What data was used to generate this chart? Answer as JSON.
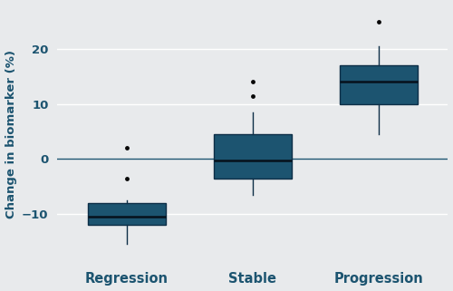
{
  "categories": [
    "Regression",
    "Stable",
    "Progression"
  ],
  "box_data": [
    {
      "med": -10.5,
      "q1": -12.0,
      "q3": -8.0,
      "whislo": -15.5,
      "whishi": -7.5,
      "fliers": [
        -3.5,
        2.0
      ]
    },
    {
      "med": -0.3,
      "q1": -3.5,
      "q3": 4.5,
      "whislo": -6.5,
      "whishi": 8.5,
      "fliers": [
        11.5,
        14.0
      ]
    },
    {
      "med": 14.0,
      "q1": 10.0,
      "q3": 17.0,
      "whislo": 4.5,
      "whishi": 20.5,
      "fliers": [
        25.0
      ]
    }
  ],
  "box_color": "#1c5470",
  "box_edge_color": "#0d2e47",
  "median_color": "#06111c",
  "whisker_color": "#0d2e47",
  "flier_color": "#080808",
  "hline_y": 0,
  "hline_color": "#1c5470",
  "ylabel": "Change in biomarker (%)",
  "ylabel_color": "#1c5470",
  "tick_label_color": "#1c5470",
  "background_color": "#e8eaec",
  "grid_color": "#ffffff",
  "ylim": [
    -19,
    28
  ],
  "yticks": [
    -10,
    0,
    10,
    20
  ],
  "box_width": 0.62,
  "figsize": [
    5.0,
    3.21
  ],
  "dpi": 100
}
